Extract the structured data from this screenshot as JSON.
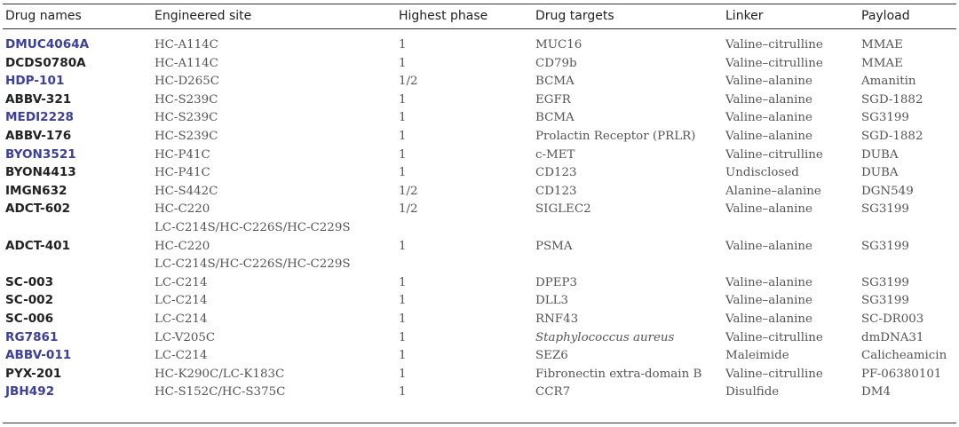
{
  "headers": [
    "Drug names",
    "Engineered site",
    "Highest phase",
    "Drug targets",
    "Linker",
    "Payload"
  ],
  "rows": [
    {
      "name": "DMUC4064A",
      "link": true,
      "site": "HC-A114C",
      "phase": "1",
      "target": "MUC16",
      "linker": "Valine–citrulline",
      "payload": "MMAE"
    },
    {
      "name": "DCDS0780A",
      "link": false,
      "site": "HC-A114C",
      "phase": "1",
      "target": "CD79b",
      "linker": "Valine–citrulline",
      "payload": "MMAE"
    },
    {
      "name": "HDP-101",
      "link": true,
      "site": "HC-D265C",
      "phase": "1/2",
      "target": "BCMA",
      "linker": "Valine–alanine",
      "payload": "Amanitin"
    },
    {
      "name": "ABBV-321",
      "link": false,
      "site": "HC-S239C",
      "phase": "1",
      "target": "EGFR",
      "linker": "Valine–alanine",
      "payload": "SGD-1882"
    },
    {
      "name": "MEDI2228",
      "link": true,
      "site": "HC-S239C",
      "phase": "1",
      "target": "BCMA",
      "linker": "Valine–alanine",
      "payload": "SG3199"
    },
    {
      "name": "ABBV-176",
      "link": false,
      "site": "HC-S239C",
      "phase": "1",
      "target": "Prolactin Receptor (PRLR)",
      "linker": "Valine–alanine",
      "payload": "SGD-1882"
    },
    {
      "name": "BYON3521",
      "link": true,
      "site": "HC-P41C",
      "phase": "1",
      "target": "c-MET",
      "linker": "Valine–citrulline",
      "payload": "DUBA"
    },
    {
      "name": "BYON4413",
      "link": false,
      "site": "HC-P41C",
      "phase": "1",
      "target": "CD123",
      "linker": "Undisclosed",
      "payload": "DUBA"
    },
    {
      "name": "IMGN632",
      "link": false,
      "site": "HC-S442C",
      "phase": "1/2",
      "target": "CD123",
      "linker": "Alanine–alanine",
      "payload": "DGN549"
    },
    {
      "name": "ADCT-602",
      "link": false,
      "site": "HC-C220",
      "site2": "LC-C214S/HC-C226S/HC-C229S",
      "phase": "1/2",
      "target": "SIGLEC2",
      "linker": "Valine–alanine",
      "payload": "SG3199"
    },
    {
      "name": "ADCT-401",
      "link": false,
      "site": "HC-C220",
      "site2": "LC-C214S/HC-C226S/HC-C229S",
      "phase": "1",
      "target": "PSMA",
      "linker": "Valine–alanine",
      "payload": "SG3199"
    },
    {
      "name": "SC-003",
      "link": false,
      "site": "LC-C214",
      "phase": "1",
      "target": "DPEP3",
      "linker": "Valine–alanine",
      "payload": "SG3199"
    },
    {
      "name": "SC-002",
      "link": false,
      "site": "LC-C214",
      "phase": "1",
      "target": "DLL3",
      "linker": "Valine–alanine",
      "payload": "SG3199"
    },
    {
      "name": "SC-006",
      "link": false,
      "site": "LC-C214",
      "phase": "1",
      "target": "RNF43",
      "linker": "Valine–alanine",
      "payload": "SC-DR003"
    },
    {
      "name": "RG7861",
      "link": true,
      "site": "LC-V205C",
      "phase": "1",
      "target": "Staphylococcus aureus",
      "target_italic": true,
      "linker": "Valine–citrulline",
      "payload": "dmDNA31"
    },
    {
      "name": "ABBV-011",
      "link": true,
      "site": "LC-C214",
      "phase": "1",
      "target": "SEZ6",
      "linker": "Maleimide",
      "payload": "Calicheamicin"
    },
    {
      "name": "PYX-201",
      "link": false,
      "site": "HC-K290C/LC-K183C",
      "phase": "1",
      "target": "Fibronectin extra-domain B",
      "linker": "Valine–citrulline",
      "payload": "PF-06380101"
    },
    {
      "name": "JBH492",
      "link": true,
      "site": "HC-S152C/HC-S375C",
      "phase": "1",
      "target": "CCR7",
      "linker": "Disulfide",
      "payload": "DM4"
    }
  ]
}
